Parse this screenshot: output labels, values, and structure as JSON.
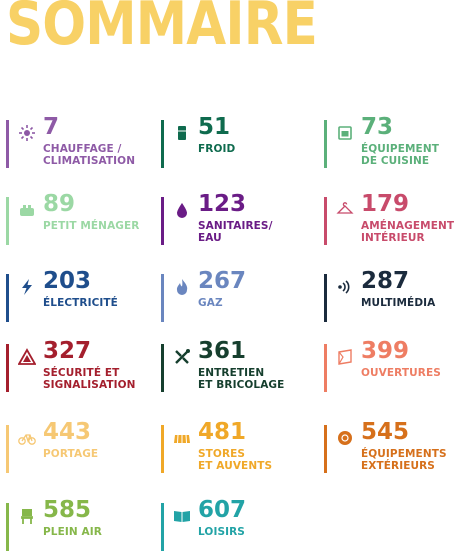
{
  "title": "SOMMAIRE",
  "title_color": "#F8D166",
  "items": [
    {
      "number": "7",
      "label": "CHAUFFAGE /\nCLIMATISATION",
      "color": "#8E5AA6",
      "icon": "sun-snowflake-icon"
    },
    {
      "number": "51",
      "label": "FROID",
      "color": "#0F6B4E",
      "icon": "fridge-icon"
    },
    {
      "number": "73",
      "label": "ÉQUIPEMENT\nDE CUISINE",
      "color": "#5BB07A",
      "icon": "oven-icon"
    },
    {
      "number": "89",
      "label": "PETIT MÉNAGER",
      "color": "#9BD8A4",
      "icon": "toaster-icon"
    },
    {
      "number": "123",
      "label": "SANITAIRES/\nEAU",
      "color": "#6A1C86",
      "icon": "water-drop-icon"
    },
    {
      "number": "179",
      "label": "AMÉNAGEMENT\nINTÉRIEUR",
      "color": "#C84B6B",
      "icon": "hanger-icon"
    },
    {
      "number": "203",
      "label": "ÉLECTRICITÉ",
      "color": "#1F4E8C",
      "icon": "lightning-icon"
    },
    {
      "number": "267",
      "label": "GAZ",
      "color": "#6A86BF",
      "icon": "flame-icon"
    },
    {
      "number": "287",
      "label": "MULTIMÉDIA",
      "color": "#1B2B3D",
      "icon": "signal-waves-icon"
    },
    {
      "number": "327",
      "label": "SÉCURITÉ ET\nSIGNALISATION",
      "color": "#A41F2D",
      "icon": "warning-triangle-icon"
    },
    {
      "number": "361",
      "label": "ENTRETIEN\nET BRICOLAGE",
      "color": "#163F2E",
      "icon": "tools-icon"
    },
    {
      "number": "399",
      "label": "OUVERTURES",
      "color": "#EE7D63",
      "icon": "window-icon"
    },
    {
      "number": "443",
      "label": "PORTAGE",
      "color": "#F6C874",
      "icon": "bicycle-icon"
    },
    {
      "number": "481",
      "label": "STORES\nET AUVENTS",
      "color": "#F0A828",
      "icon": "awning-icon"
    },
    {
      "number": "545",
      "label": "ÉQUIPEMENTS\nEXTÉRIEURS",
      "color": "#D6701B",
      "icon": "outdoor-sun-icon"
    },
    {
      "number": "585",
      "label": "PLEIN AIR",
      "color": "#86B74A",
      "icon": "camping-chair-icon"
    },
    {
      "number": "607",
      "label": "LOISIRS",
      "color": "#22A3A6",
      "icon": "book-icon"
    }
  ]
}
